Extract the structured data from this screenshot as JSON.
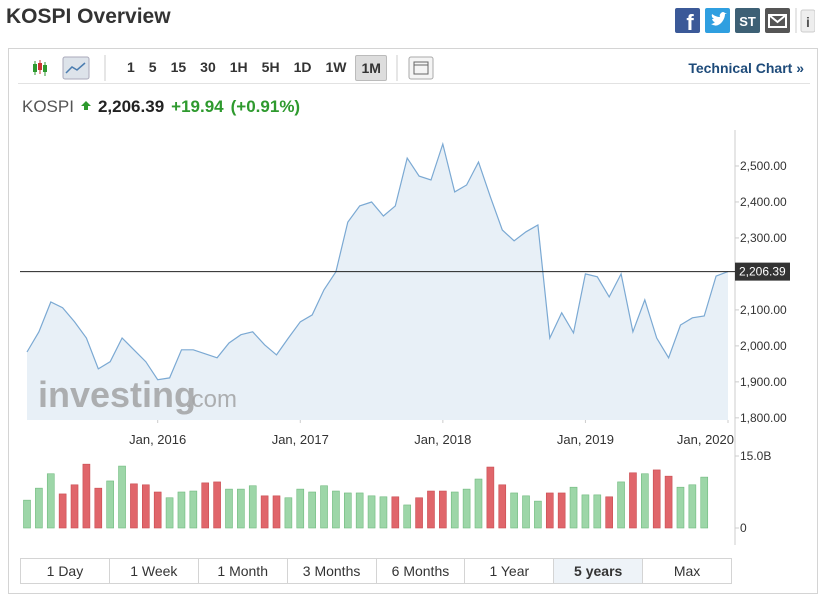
{
  "header": {
    "title": "KOSPI Overview",
    "icons": {
      "facebook": "f",
      "stocktwits": "ST",
      "info": "i"
    }
  },
  "toolbar": {
    "intervals": [
      "1",
      "5",
      "15",
      "30",
      "1H",
      "5H",
      "1D",
      "1W",
      "1M"
    ],
    "active_interval": "1M",
    "link": "Technical Chart »"
  },
  "quote": {
    "name": "KOSPI",
    "price": "2,206.39",
    "change": "+19.94",
    "change_pct": "(+0.91%)"
  },
  "watermark": {
    "main": "investing",
    "suffix": ".com"
  },
  "chart_data": [
    {
      "type": "line",
      "x": [
        "2015-02",
        "2015-03",
        "2015-04",
        "2015-05",
        "2015-06",
        "2015-07",
        "2015-08",
        "2015-09",
        "2015-10",
        "2015-11",
        "2015-12",
        "2016-01",
        "2016-02",
        "2016-03",
        "2016-04",
        "2016-05",
        "2016-06",
        "2016-07",
        "2016-08",
        "2016-09",
        "2016-10",
        "2016-11",
        "2016-12",
        "2017-01",
        "2017-02",
        "2017-03",
        "2017-04",
        "2017-05",
        "2017-06",
        "2017-07",
        "2017-08",
        "2017-09",
        "2017-10",
        "2017-11",
        "2017-12",
        "2018-01",
        "2018-02",
        "2018-03",
        "2018-04",
        "2018-05",
        "2018-06",
        "2018-07",
        "2018-08",
        "2018-09",
        "2018-10",
        "2018-11",
        "2018-12",
        "2019-01",
        "2019-02",
        "2019-03",
        "2019-04",
        "2019-05",
        "2019-06",
        "2019-07",
        "2019-08",
        "2019-09",
        "2019-10",
        "2019-11",
        "2019-12",
        "2020-01"
      ],
      "values": [
        1983,
        2039,
        2122,
        2106,
        2067,
        2022,
        1936,
        1956,
        2022,
        1989,
        1956,
        1906,
        1911,
        1989,
        1989,
        1978,
        1967,
        2008,
        2031,
        2039,
        2003,
        1975,
        2022,
        2067,
        2086,
        2156,
        2206,
        2344,
        2389,
        2400,
        2361,
        2389,
        2522,
        2472,
        2461,
        2561,
        2428,
        2447,
        2511,
        2414,
        2322,
        2292,
        2317,
        2336,
        2022,
        2092,
        2036,
        2200,
        2192,
        2136,
        2200,
        2039,
        2128,
        2022,
        1967,
        2058,
        2078,
        2083,
        2194,
        2206.39
      ],
      "color": "#7ba9d3",
      "ylim": [
        1794,
        2600
      ],
      "yticks": [
        {
          "value": 1800,
          "label": "1,800.00"
        },
        {
          "value": 1900,
          "label": "1,900.00"
        },
        {
          "value": 2000,
          "label": "2,000.00"
        },
        {
          "value": 2100,
          "label": "2,100.00"
        },
        {
          "value": 2200,
          "label": "2,200.00"
        },
        {
          "value": 2300,
          "label": "2,300.00"
        },
        {
          "value": 2400,
          "label": "2,400.00"
        },
        {
          "value": 2500,
          "label": "2,500.00"
        }
      ],
      "xticks": [
        {
          "value": "2016-01",
          "label": "Jan, 2016"
        },
        {
          "value": "2017-01",
          "label": "Jan, 2017"
        },
        {
          "value": "2018-01",
          "label": "Jan, 2018"
        },
        {
          "value": "2019-01",
          "label": "Jan, 2019"
        },
        {
          "value": "2020-01",
          "label": "Jan, 2020"
        }
      ],
      "last_value": {
        "value": 2206.39,
        "label": "2,206.39"
      }
    },
    {
      "type": "bar",
      "values": [
        5.8,
        8.3,
        11.3,
        7.1,
        9,
        13.3,
        8.3,
        9.8,
        12.9,
        9.2,
        9,
        7.5,
        6.3,
        7.5,
        7.7,
        9.4,
        9.6,
        8.1,
        8.1,
        8.8,
        6.7,
        6.7,
        6.3,
        8.1,
        7.5,
        8.8,
        7.7,
        7.3,
        7.3,
        6.7,
        6.5,
        6.5,
        4.8,
        6.3,
        7.7,
        7.7,
        7.5,
        8.1,
        10.2,
        12.7,
        9,
        7.3,
        6.7,
        5.6,
        7.3,
        7.3,
        8.5,
        6.9,
        6.9,
        6.5,
        9.6,
        11.5,
        11.3,
        12.1,
        10.8,
        8.5,
        9,
        10.6,
        null,
        null
      ],
      "colors": [
        "#9dd6a8",
        "#9dd6a8",
        "#9dd6a8",
        "#e0666b",
        "#e0666b",
        "#e0666b",
        "#e0666b",
        "#9dd6a8",
        "#9dd6a8",
        "#e0666b",
        "#e0666b",
        "#e0666b",
        "#9dd6a8",
        "#9dd6a8",
        "#9dd6a8",
        "#e0666b",
        "#e0666b",
        "#9dd6a8",
        "#9dd6a8",
        "#9dd6a8",
        "#e0666b",
        "#e0666b",
        "#9dd6a8",
        "#9dd6a8",
        "#9dd6a8",
        "#9dd6a8",
        "#9dd6a8",
        "#9dd6a8",
        "#9dd6a8",
        "#9dd6a8",
        "#9dd6a8",
        "#e0666b",
        "#9dd6a8",
        "#e0666b",
        "#e0666b",
        "#e0666b",
        "#9dd6a8",
        "#9dd6a8",
        "#9dd6a8",
        "#e0666b",
        "#e0666b",
        "#9dd6a8",
        "#9dd6a8",
        "#9dd6a8",
        "#e0666b",
        "#e0666b",
        "#9dd6a8",
        "#9dd6a8",
        "#9dd6a8",
        "#e0666b",
        "#9dd6a8",
        "#e0666b",
        "#9dd6a8",
        "#e0666b",
        "#e0666b",
        "#9dd6a8",
        "#9dd6a8",
        "#9dd6a8",
        null,
        null
      ],
      "ylim": [
        0,
        15
      ],
      "yticks": [
        0,
        {
          "value": 15,
          "label": "15.0B"
        }
      ]
    }
  ],
  "range_buttons": [
    "1 Day",
    "1 Week",
    "1 Month",
    "3 Months",
    "6 Months",
    "1 Year",
    "5 years",
    "Max"
  ],
  "active_range": "5 years"
}
